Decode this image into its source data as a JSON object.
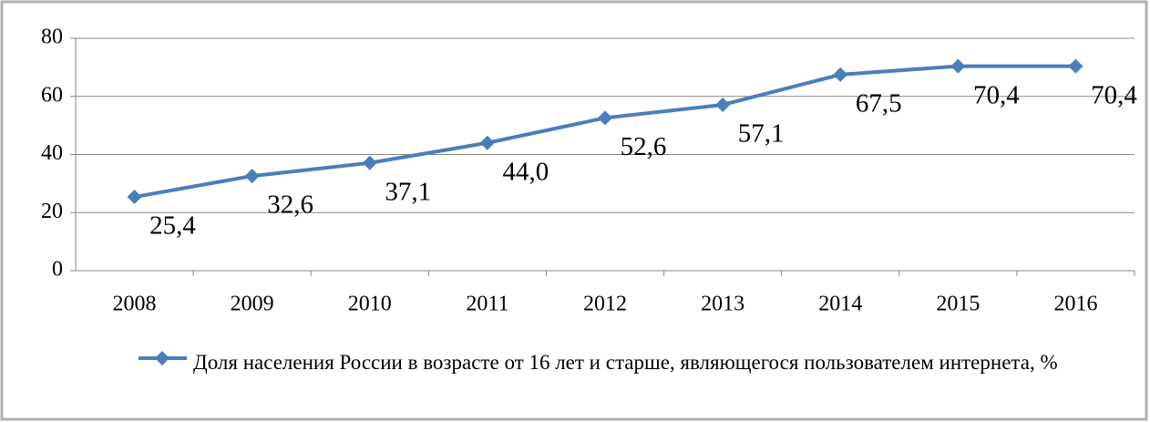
{
  "chart_data": {
    "type": "line",
    "categories": [
      "2008",
      "2009",
      "2010",
      "2011",
      "2012",
      "2013",
      "2014",
      "2015",
      "2016"
    ],
    "series": [
      {
        "name": "Доля населения России в возрасте от 16 лет и старше, являющегося пользователем интернета, %",
        "color": "#4a7ebb",
        "values": [
          25.4,
          32.6,
          37.1,
          44.0,
          52.6,
          57.1,
          67.5,
          70.4,
          70.4
        ],
        "value_labels": [
          "25,4",
          "32,6",
          "37,1",
          "44,0",
          "52,6",
          "57,1",
          "67,5",
          "70,4",
          "70,4"
        ]
      }
    ],
    "ylim": [
      0,
      80
    ],
    "yticks": [
      0,
      20,
      40,
      60,
      80
    ],
    "grid": true,
    "legend": "bottom"
  }
}
